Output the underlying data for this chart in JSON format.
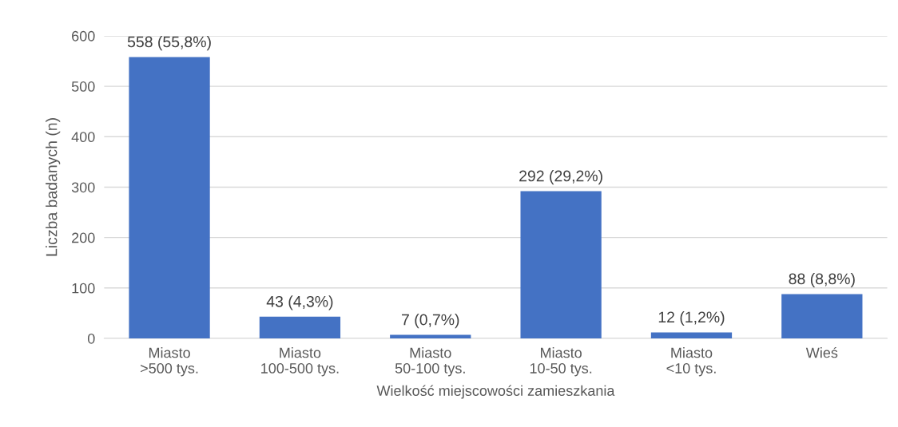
{
  "chart_data": {
    "type": "bar",
    "xlabel": "Wielkość miejscowości zamieszkania",
    "ylabel": "Liczba badanych (n)",
    "categories": [
      "Miasto\n>500 tys.",
      "Miasto\n100-500 tys.",
      "Miasto\n50-100 tys.",
      "Miasto\n10-50 tys.",
      "Miasto\n<10 tys.",
      "Wieś"
    ],
    "values": [
      558,
      43,
      7,
      292,
      12,
      88
    ],
    "value_labels": [
      "558 (55,8%)",
      "43 (4,3%)",
      "7 (0,7%)",
      "292 (29,2%)",
      "12 (1,2%)",
      "88 (8,8%)"
    ],
    "color": "#4472c4",
    "ylim": [
      0,
      600
    ],
    "yticks": [
      0,
      100,
      200,
      300,
      400,
      500,
      600
    ],
    "grid": "y"
  }
}
